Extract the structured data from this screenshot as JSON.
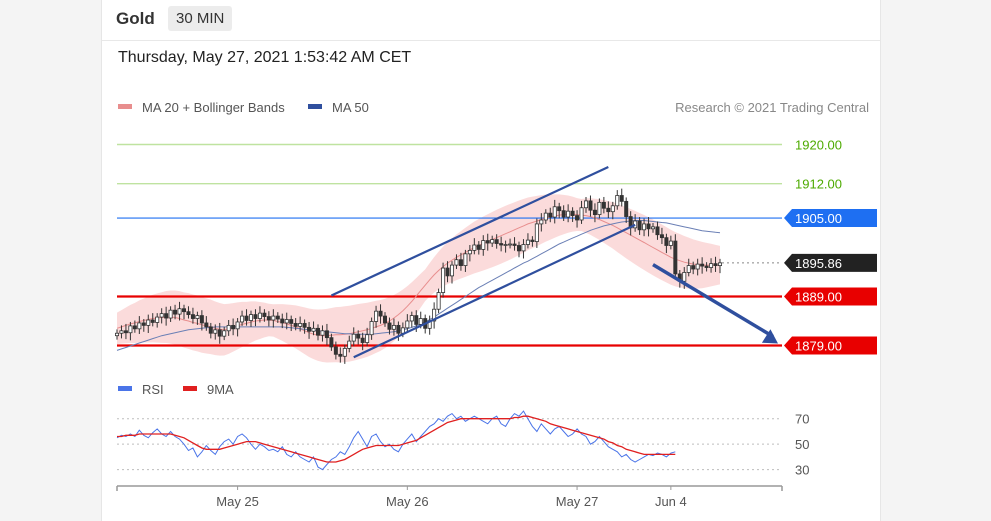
{
  "header": {
    "title": "Gold",
    "timeframe": "30 MIN"
  },
  "datetime": "Thursday, May 27, 2021 1:53:42 AM CET",
  "legend": {
    "ma20": "MA 20 + Bollinger Bands",
    "ma50": "MA 50",
    "credit": "Research © 2021 Trading Central",
    "rsi": "RSI",
    "rsi_ma": "9MA"
  },
  "colors": {
    "up_target": "#4daa00",
    "up_line": "#bfe3a0",
    "blue": "#1e6ff2",
    "red": "#e80000",
    "dark": "#222222",
    "channel": "#2f4f9e",
    "bands": "#f9cfcf",
    "ma20": "#e88e8e",
    "ma50": "#6a7fb5",
    "rsi": "#4a74e8",
    "rsi_ma": "#e02020"
  },
  "chart_data": [
    {
      "type": "line",
      "title": "",
      "ylim": [
        1874,
        1925
      ],
      "levels": [
        {
          "value": 1920.0,
          "label": "1920.00",
          "style": "green"
        },
        {
          "value": 1912.0,
          "label": "1912.00",
          "style": "green"
        },
        {
          "value": 1905.0,
          "label": "1905.00",
          "style": "blue"
        },
        {
          "value": 1895.86,
          "label": "1895.86",
          "style": "dark"
        },
        {
          "value": 1889.0,
          "label": "1889.00",
          "style": "red"
        },
        {
          "value": 1879.0,
          "label": "1879.00",
          "style": "red"
        }
      ],
      "current_price": 1895.86,
      "close_series": [
        1881.5,
        1882.0,
        1881.6,
        1883.0,
        1882.4,
        1883.6,
        1883.1,
        1884.2,
        1883.7,
        1884.8,
        1885.5,
        1884.6,
        1886.2,
        1885.4,
        1886.5,
        1885.9,
        1885.3,
        1884.5,
        1885.1,
        1883.6,
        1882.8,
        1881.5,
        1882.2,
        1880.9,
        1882.0,
        1883.1,
        1882.4,
        1883.8,
        1885.0,
        1884.1,
        1885.3,
        1884.5,
        1885.6,
        1884.9,
        1884.2,
        1885.0,
        1884.4,
        1883.6,
        1884.3,
        1883.5,
        1882.9,
        1883.5,
        1882.7,
        1881.9,
        1882.5,
        1881.1,
        1882.0,
        1880.6,
        1878.7,
        1877.2,
        1876.8,
        1878.4,
        1879.9,
        1881.3,
        1880.5,
        1879.6,
        1881.2,
        1883.9,
        1886.0,
        1885.0,
        1883.6,
        1882.3,
        1883.1,
        1881.5,
        1882.6,
        1884.0,
        1885.1,
        1883.3,
        1884.5,
        1882.5,
        1884.0,
        1886.4,
        1889.8,
        1894.8,
        1893.2,
        1895.4,
        1896.5,
        1895.3,
        1897.7,
        1898.4,
        1899.5,
        1898.6,
        1900.4,
        1899.9,
        1900.6,
        1899.8,
        1899.5,
        1899.6,
        1899.7,
        1899.4,
        1898.3,
        1899.6,
        1900.5,
        1900.2,
        1903.8,
        1904.6,
        1906.0,
        1905.2,
        1907.3,
        1906.5,
        1905.2,
        1906.4,
        1905.5,
        1904.6,
        1907.1,
        1908.5,
        1906.6,
        1905.7,
        1908.2,
        1907.0,
        1906.3,
        1907.5,
        1909.6,
        1908.4,
        1905.3,
        1903.0,
        1904.4,
        1902.6,
        1903.8,
        1902.8,
        1903.2,
        1901.6,
        1901.0,
        1899.4,
        1900.3,
        1893.6,
        1892.1,
        1893.9,
        1895.3,
        1894.6,
        1895.6,
        1895.2,
        1894.9,
        1895.7,
        1895.3,
        1895.86
      ],
      "ma20": [
        1882.5,
        1882.8,
        1883.1,
        1883.4,
        1883.6,
        1883.9,
        1884.1,
        1884.3,
        1884.5,
        1884.6,
        1884.7,
        1884.8,
        1884.8,
        1884.7,
        1884.5,
        1884.2,
        1884.0,
        1883.7,
        1883.5,
        1883.2,
        1883.0,
        1882.8,
        1882.5,
        1882.3,
        1882.2,
        1882.4,
        1882.7,
        1883.0,
        1883.3,
        1883.5,
        1883.8,
        1884.0,
        1884.1,
        1884.2,
        1884.2,
        1884.1,
        1883.9,
        1883.7,
        1883.4,
        1883.1,
        1882.8,
        1882.4,
        1882.0,
        1881.6,
        1881.3,
        1881.1,
        1881.0,
        1881.0,
        1881.1,
        1881.2,
        1881.2,
        1881.3,
        1881.4,
        1881.6,
        1881.8,
        1882.0,
        1882.2,
        1882.5,
        1882.8,
        1883.1,
        1883.5,
        1884.0,
        1884.6,
        1885.3,
        1886.1,
        1887.0,
        1888.0,
        1889.1,
        1890.2,
        1891.3,
        1892.4,
        1893.4,
        1894.3,
        1895.1,
        1895.8,
        1896.4,
        1897.0,
        1897.5,
        1898.0,
        1898.5,
        1899.0,
        1899.4,
        1899.8,
        1900.2,
        1900.6,
        1901.0,
        1901.4,
        1901.8,
        1902.2,
        1902.6,
        1903.0,
        1903.4,
        1903.8,
        1904.1,
        1904.4,
        1904.7,
        1905.0,
        1905.2,
        1905.4,
        1905.6,
        1905.7,
        1905.8,
        1905.8,
        1905.7,
        1905.6,
        1905.5,
        1905.3,
        1905.0,
        1904.7,
        1904.3,
        1903.9,
        1903.5,
        1903.0,
        1902.5,
        1902.0,
        1901.5,
        1901.0,
        1900.5,
        1900.0,
        1899.5,
        1899.0,
        1898.5,
        1898.0,
        1897.5,
        1897.0,
        1896.6,
        1896.3,
        1896.0,
        1895.8,
        1895.6,
        1895.5,
        1895.4,
        1895.4,
        1895.4,
        1895.4,
        1895.4
      ],
      "ma50": [
        1878.0,
        1878.3,
        1878.6,
        1878.9,
        1879.2,
        1879.5,
        1879.8,
        1880.1,
        1880.4,
        1880.7,
        1881.0,
        1881.2,
        1881.4,
        1881.6,
        1881.8,
        1882.0,
        1882.2,
        1882.3,
        1882.4,
        1882.5,
        1882.6,
        1882.7,
        1882.8,
        1882.8,
        1882.8,
        1882.8,
        1882.8,
        1882.8,
        1882.8,
        1882.8,
        1882.8,
        1882.8,
        1882.8,
        1882.8,
        1882.8,
        1882.8,
        1882.8,
        1882.8,
        1882.7,
        1882.6,
        1882.5,
        1882.4,
        1882.3,
        1882.2,
        1882.1,
        1882.0,
        1881.9,
        1881.8,
        1881.7,
        1881.6,
        1881.5,
        1881.4,
        1881.4,
        1881.3,
        1881.3,
        1881.3,
        1881.3,
        1881.3,
        1881.4,
        1881.5,
        1881.6,
        1881.7,
        1881.8,
        1882.0,
        1882.2,
        1882.4,
        1882.7,
        1883.0,
        1883.4,
        1883.8,
        1884.3,
        1884.8,
        1885.4,
        1886.0,
        1886.6,
        1887.2,
        1887.8,
        1888.4,
        1889.0,
        1889.6,
        1890.2,
        1890.8,
        1891.3,
        1891.8,
        1892.3,
        1892.8,
        1893.3,
        1893.8,
        1894.3,
        1894.8,
        1895.3,
        1895.8,
        1896.2,
        1896.7,
        1897.2,
        1897.7,
        1898.2,
        1898.7,
        1899.2,
        1899.7,
        1900.1,
        1900.5,
        1900.9,
        1901.3,
        1901.7,
        1902.1,
        1902.5,
        1902.8,
        1903.1,
        1903.4,
        1903.6,
        1903.8,
        1904.0,
        1904.2,
        1904.3,
        1904.4,
        1904.5,
        1904.5,
        1904.5,
        1904.4,
        1904.3,
        1904.2,
        1904.1,
        1904.0,
        1903.8,
        1903.6,
        1903.4,
        1903.2,
        1903.0,
        1902.8,
        1902.6,
        1902.4,
        1902.3,
        1902.2,
        1902.1,
        1902.0
      ],
      "channel": {
        "upper": [
          [
            48,
            1889.2
          ],
          [
            110,
            1915.4
          ]
        ],
        "lower": [
          [
            53,
            1876.6
          ],
          [
            116,
            1903.6
          ]
        ]
      },
      "arrow": {
        "from": [
          120,
          1895.5
        ],
        "to": [
          133,
          1879.0
        ]
      }
    },
    {
      "type": "line",
      "title": "",
      "ylim": [
        25,
        80
      ],
      "yticks": [
        70,
        50,
        30
      ],
      "x_ticks": [
        {
          "label": "May 25",
          "x": 27
        },
        {
          "label": "May 26",
          "x": 65
        },
        {
          "label": "May 27",
          "x": 103
        },
        {
          "label": "Jun 4",
          "x": 124
        }
      ],
      "series": [
        {
          "name": "RSI",
          "values": [
            55,
            57,
            56,
            58,
            56,
            61,
            57,
            55,
            59,
            62,
            58,
            56,
            60,
            56,
            54,
            50,
            45,
            47,
            40,
            44,
            49,
            45,
            42,
            48,
            52,
            54,
            50,
            56,
            58,
            55,
            50,
            46,
            50,
            48,
            45,
            46,
            44,
            48,
            42,
            40,
            44,
            40,
            38,
            36,
            40,
            32,
            30,
            34,
            38,
            40,
            44,
            42,
            48,
            55,
            60,
            54,
            48,
            56,
            58,
            52,
            48,
            50,
            46,
            44,
            50,
            54,
            58,
            52,
            56,
            60,
            64,
            66,
            70,
            68,
            72,
            74,
            70,
            72,
            68,
            70,
            72,
            70,
            68,
            66,
            70,
            72,
            66,
            64,
            70,
            74,
            72,
            76,
            70,
            64,
            60,
            66,
            62,
            58,
            62,
            64,
            60,
            56,
            58,
            62,
            58,
            56,
            50,
            52,
            56,
            52,
            48,
            46,
            44,
            40,
            42,
            38,
            36,
            38,
            40,
            42,
            41,
            43,
            42,
            40,
            43,
            44
          ]
        },
        {
          "name": "9MA",
          "values": [
            56,
            56,
            57,
            57,
            57,
            58,
            58,
            58,
            58,
            58,
            58,
            58,
            58,
            57,
            56,
            55,
            53,
            51,
            49,
            47,
            46,
            46,
            46,
            46,
            47,
            48,
            49,
            50,
            51,
            52,
            52,
            52,
            51,
            50,
            49,
            48,
            47,
            46,
            45,
            44,
            43,
            42,
            41,
            40,
            39,
            38,
            37,
            36,
            36,
            36,
            37,
            38,
            40,
            42,
            44,
            46,
            47,
            48,
            49,
            49,
            49,
            49,
            49,
            49,
            50,
            51,
            52,
            53,
            55,
            57,
            59,
            61,
            63,
            65,
            67,
            68,
            69,
            70,
            70,
            70,
            70,
            70,
            70,
            70,
            70,
            70,
            70,
            70,
            70,
            71,
            71,
            72,
            72,
            71,
            70,
            69,
            68,
            66,
            65,
            64,
            63,
            62,
            61,
            60,
            59,
            58,
            57,
            56,
            55,
            54,
            52,
            51,
            49,
            48,
            46,
            45,
            44,
            43,
            42,
            42,
            42,
            42,
            42,
            42,
            42,
            42
          ]
        }
      ]
    }
  ]
}
